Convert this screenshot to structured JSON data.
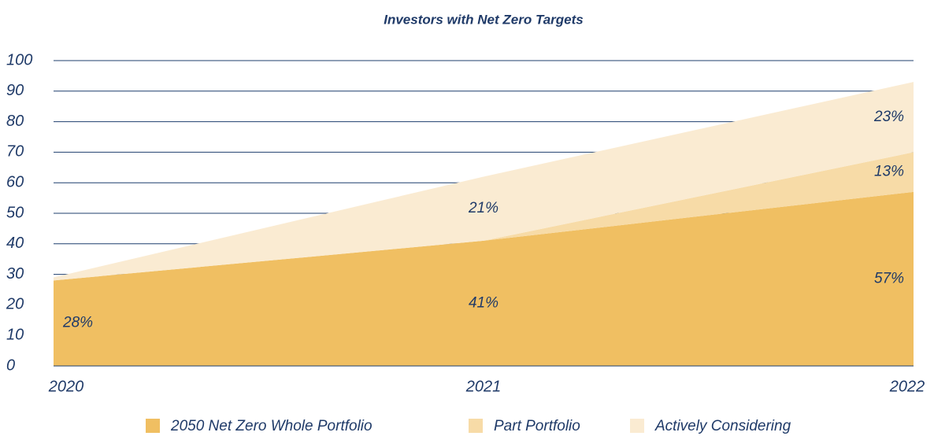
{
  "chart_data": {
    "type": "stacked_area",
    "title": "Investors with Net Zero Targets",
    "categories": [
      "2020",
      "2021",
      "2022"
    ],
    "series": [
      {
        "name": "2050 Net Zero Whole Portfolio",
        "color": "#f0bf62",
        "values": [
          28,
          41,
          57
        ],
        "value_labels": [
          "28%",
          "41%",
          "57%"
        ]
      },
      {
        "name": "Part Portfolio",
        "color": "#f7dba7",
        "values": [
          0,
          0,
          13
        ],
        "value_labels": [
          null,
          null,
          "13%"
        ]
      },
      {
        "name": "Actively Considering",
        "color": "#faebd2",
        "values": [
          1,
          21,
          23
        ],
        "value_labels": [
          null,
          "21%",
          "23%"
        ]
      }
    ],
    "ylim": [
      0,
      100
    ],
    "yticks": [
      0,
      10,
      20,
      30,
      40,
      50,
      60,
      70,
      80,
      90,
      100
    ],
    "grid": true,
    "legend": "bottom"
  }
}
